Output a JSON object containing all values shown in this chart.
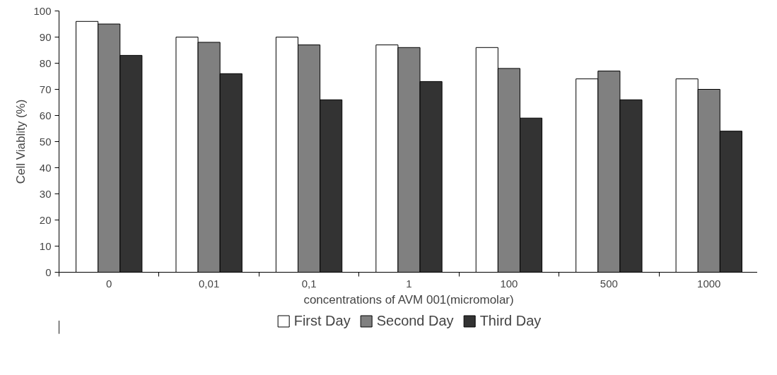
{
  "chart_data": {
    "type": "bar",
    "xlabel": "concentrations of AVM 001(micromolar)",
    "ylabel": "Cell Viablity (%)",
    "categories": [
      "0",
      "0,01",
      "0,1",
      "1",
      "100",
      "500",
      "1000"
    ],
    "series": [
      {
        "name": "First Day",
        "color": "#ffffff",
        "values": [
          96,
          90,
          90,
          87,
          86,
          74,
          74
        ]
      },
      {
        "name": "Second Day",
        "color": "#808080",
        "values": [
          95,
          88,
          87,
          86,
          78,
          77,
          70
        ]
      },
      {
        "name": "Third Day",
        "color": "#333333",
        "values": [
          83,
          76,
          66,
          73,
          59,
          66,
          54
        ]
      }
    ],
    "ylim": [
      0,
      100
    ],
    "yticks": [
      0,
      10,
      20,
      30,
      40,
      50,
      60,
      70,
      80,
      90,
      100
    ],
    "grid": false,
    "legend": "bottom"
  }
}
